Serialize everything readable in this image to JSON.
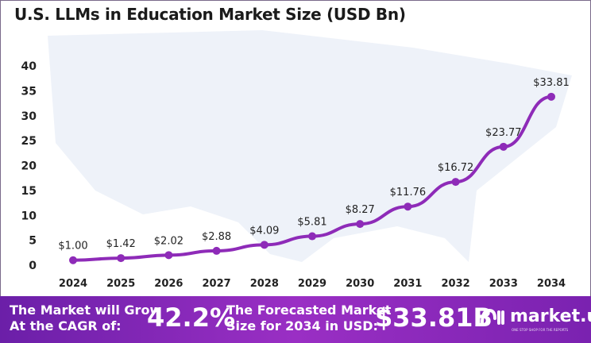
{
  "chart_data": {
    "type": "line",
    "title": "U.S. LLMs in Education Market Size (USD Bn)",
    "categories": [
      "2024",
      "2025",
      "2026",
      "2027",
      "2028",
      "2029",
      "2030",
      "2031",
      "2032",
      "2033",
      "2034"
    ],
    "values": [
      1.0,
      1.42,
      2.02,
      2.88,
      4.09,
      5.81,
      8.27,
      11.76,
      16.72,
      23.77,
      33.81
    ],
    "data_labels": [
      "$1.00",
      "$1.42",
      "$2.02",
      "$2.88",
      "$4.09",
      "$5.81",
      "$8.27",
      "$11.76",
      "$16.72",
      "$23.77",
      "$33.81"
    ],
    "yticks": [
      "0",
      "5",
      "10",
      "15",
      "20",
      "25",
      "30",
      "35",
      "40"
    ],
    "ylim": [
      0,
      40
    ],
    "grid": false,
    "line_color": "#8e2bb8"
  },
  "banner": {
    "cagr_label_1": "The Market will Grow",
    "cagr_label_2": "At the CAGR of:",
    "cagr_value": "42.2%",
    "forecast_label_1": "The Forecasted Market",
    "forecast_label_2": "Size for 2034 in USD:",
    "forecast_value": "$33.81B",
    "logo_text": "market.us",
    "logo_tagline": "ONE STOP SHOP FOR THE REPORTS"
  }
}
